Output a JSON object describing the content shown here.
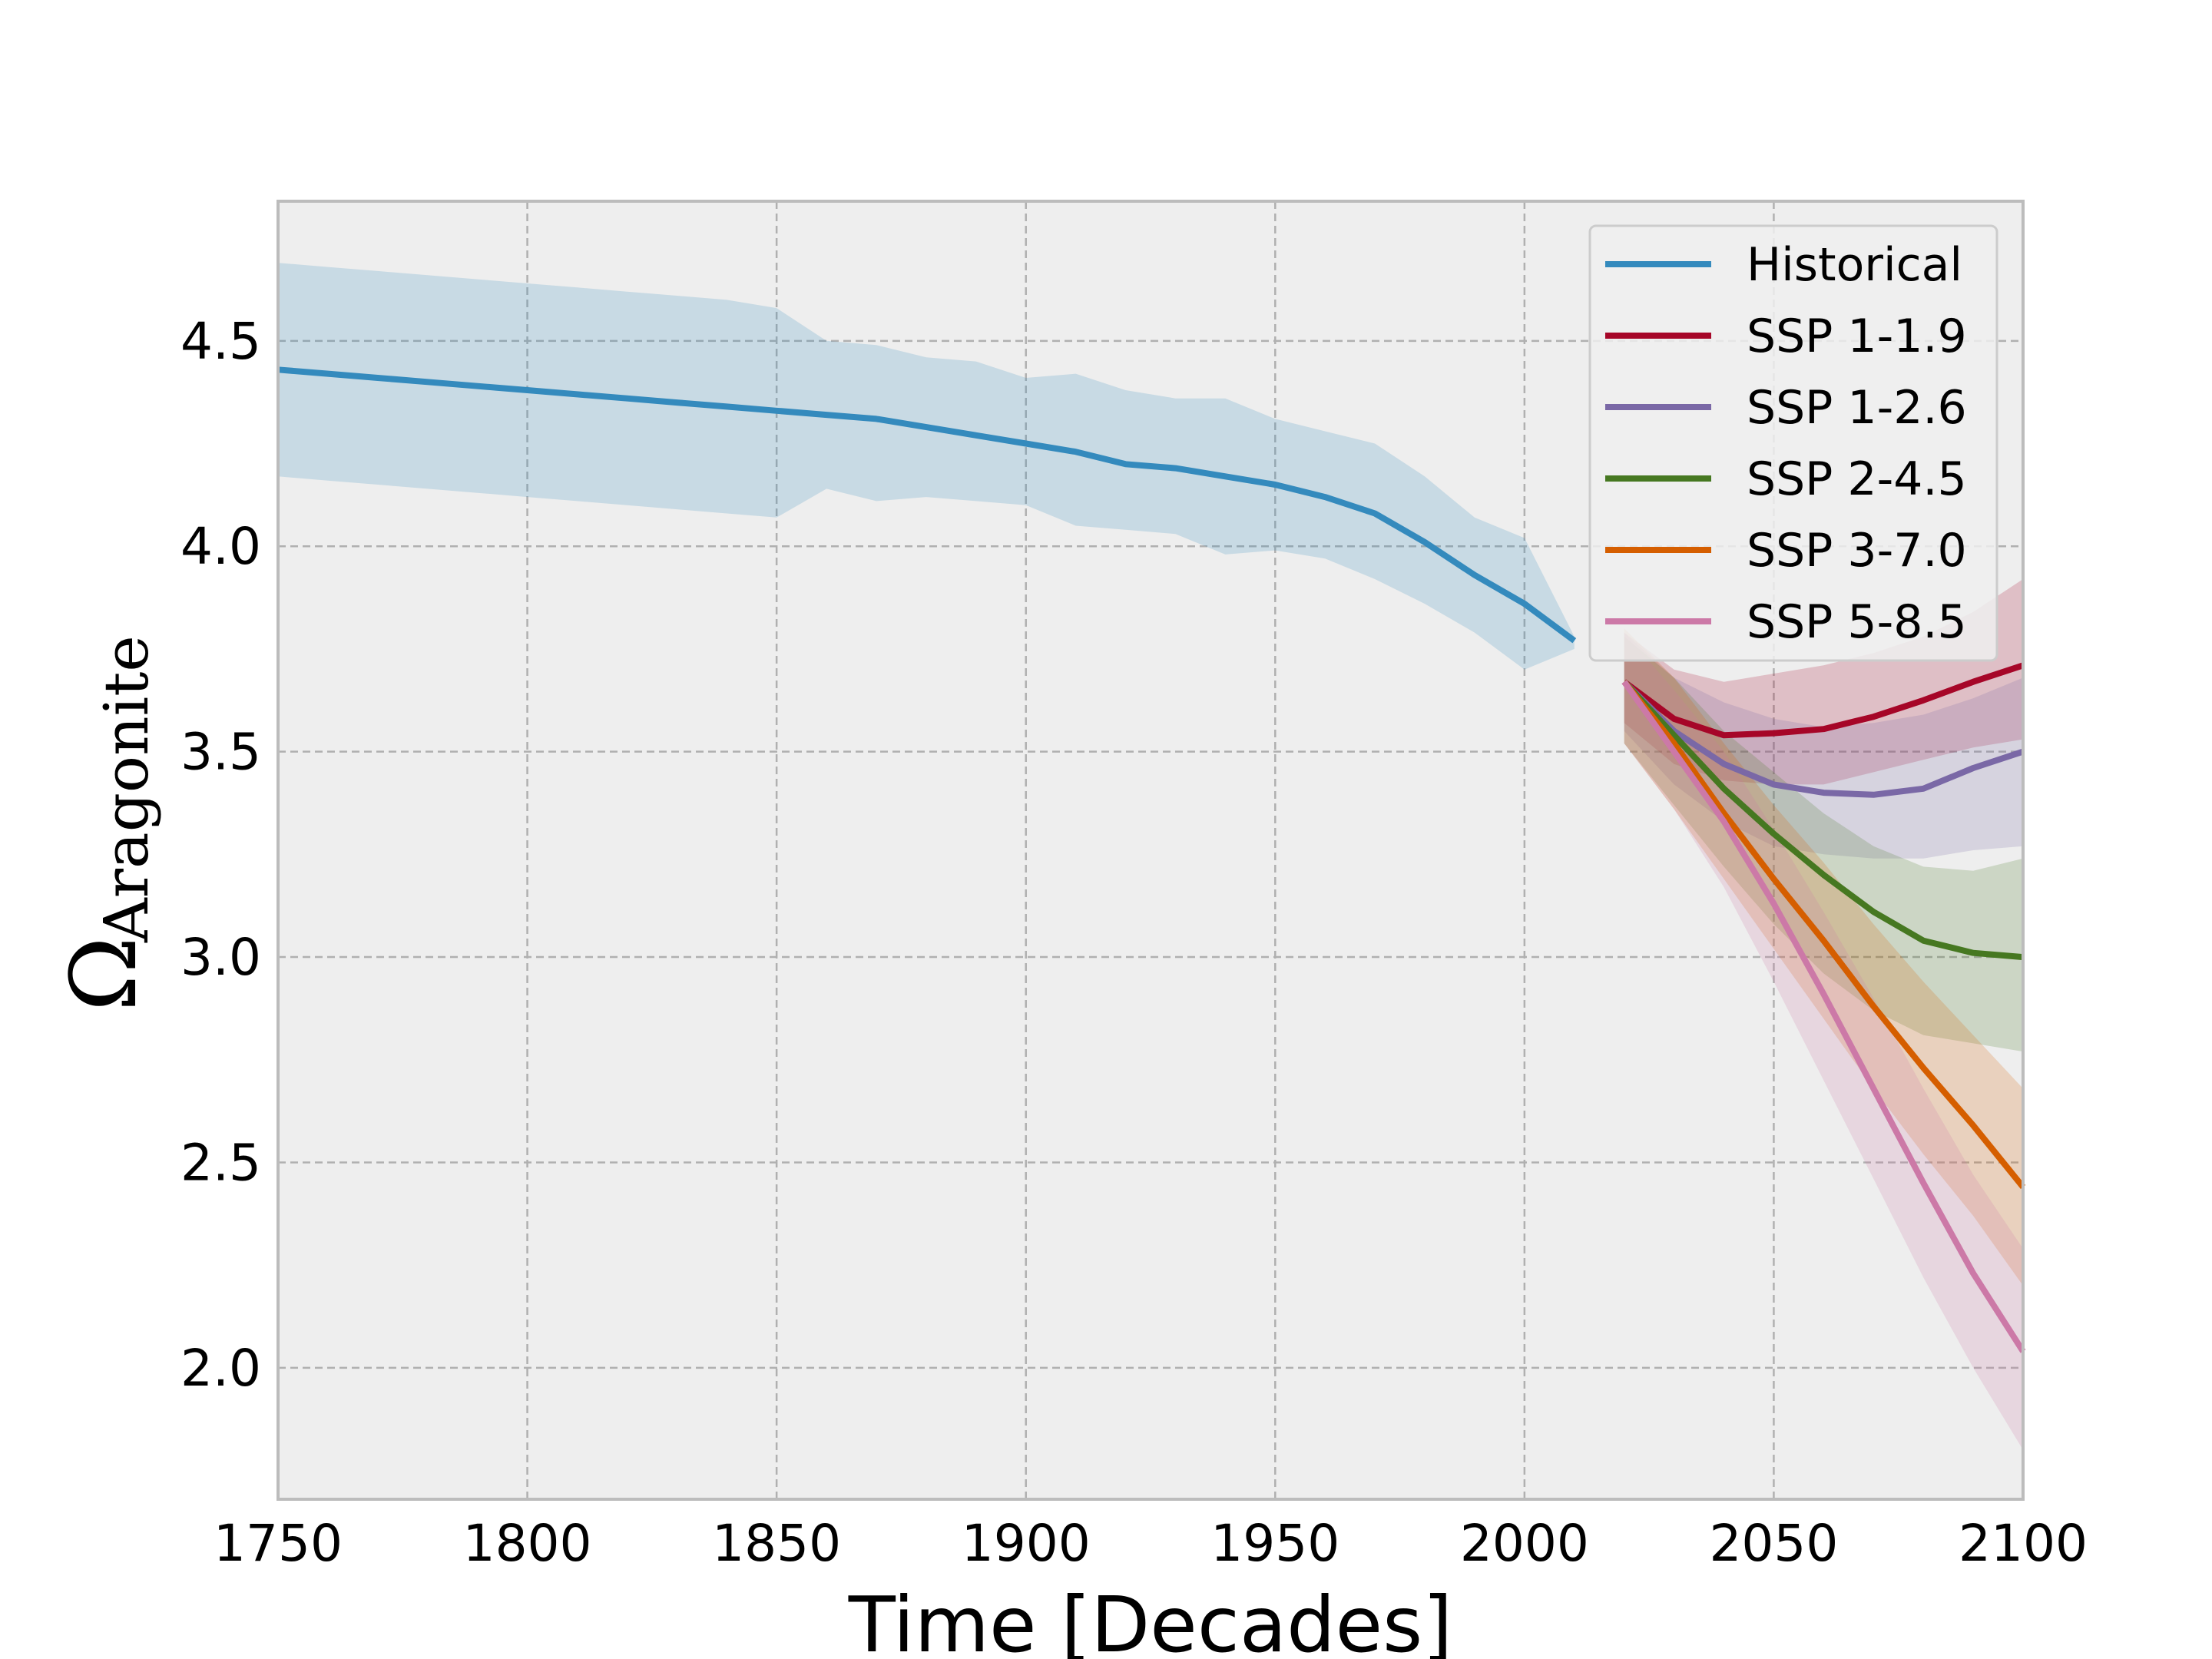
{
  "chart_data": {
    "type": "line",
    "xlabel": "Time [Decades]",
    "ylabel": "Ω",
    "ylabel_subscript": "Aragonite",
    "xlim": [
      1750,
      2100
    ],
    "ylim": [
      1.68,
      4.84
    ],
    "xticks": [
      "1750",
      "1800",
      "1850",
      "1900",
      "1950",
      "2000",
      "2050",
      "2100"
    ],
    "yticks": [
      "2.0",
      "2.5",
      "3.0",
      "3.5",
      "4.0",
      "4.5"
    ],
    "grid": true,
    "legend_position": "top-right",
    "series": [
      {
        "name": "Historical",
        "color": "#348abd",
        "x": [
          1750,
          1760,
          1770,
          1780,
          1790,
          1800,
          1810,
          1820,
          1830,
          1840,
          1850,
          1860,
          1870,
          1880,
          1890,
          1900,
          1910,
          1920,
          1930,
          1940,
          1950,
          1960,
          1970,
          1980,
          1990,
          2000,
          2010
        ],
        "y": [
          4.43,
          4.42,
          4.41,
          4.4,
          4.39,
          4.38,
          4.37,
          4.36,
          4.35,
          4.34,
          4.33,
          4.32,
          4.31,
          4.29,
          4.27,
          4.25,
          4.23,
          4.2,
          4.19,
          4.17,
          4.15,
          4.12,
          4.08,
          4.01,
          3.93,
          3.86,
          3.77
        ],
        "lower": [
          4.17,
          4.16,
          4.15,
          4.14,
          4.13,
          4.12,
          4.11,
          4.1,
          4.09,
          4.08,
          4.07,
          4.14,
          4.11,
          4.12,
          4.11,
          4.1,
          4.05,
          4.04,
          4.03,
          3.98,
          3.99,
          3.97,
          3.92,
          3.86,
          3.79,
          3.7,
          3.75
        ],
        "upper": [
          4.69,
          4.68,
          4.67,
          4.66,
          4.65,
          4.64,
          4.63,
          4.62,
          4.61,
          4.6,
          4.58,
          4.5,
          4.49,
          4.46,
          4.45,
          4.41,
          4.42,
          4.38,
          4.36,
          4.36,
          4.31,
          4.28,
          4.25,
          4.17,
          4.07,
          4.02,
          3.78
        ]
      },
      {
        "name": "SSP 1-1.9",
        "color": "#a60628",
        "x": [
          2020,
          2030,
          2040,
          2050,
          2060,
          2070,
          2080,
          2090,
          2100
        ],
        "y": [
          3.67,
          3.58,
          3.54,
          3.545,
          3.555,
          3.585,
          3.625,
          3.67,
          3.71
        ],
        "lower": [
          3.57,
          3.47,
          3.43,
          3.42,
          3.42,
          3.45,
          3.48,
          3.51,
          3.53
        ],
        "upper": [
          3.79,
          3.7,
          3.67,
          3.69,
          3.71,
          3.74,
          3.78,
          3.84,
          3.92
        ]
      },
      {
        "name": "SSP 1-2.6",
        "color": "#7a68a6",
        "x": [
          2020,
          2030,
          2040,
          2050,
          2060,
          2070,
          2080,
          2090,
          2100
        ],
        "y": [
          3.67,
          3.55,
          3.47,
          3.42,
          3.4,
          3.395,
          3.41,
          3.46,
          3.5
        ],
        "lower": [
          3.55,
          3.42,
          3.33,
          3.27,
          3.25,
          3.24,
          3.24,
          3.26,
          3.27
        ],
        "upper": [
          3.79,
          3.68,
          3.62,
          3.58,
          3.56,
          3.57,
          3.59,
          3.63,
          3.68
        ]
      },
      {
        "name": "SSP 2-4.5",
        "color": "#467821",
        "x": [
          2020,
          2030,
          2040,
          2050,
          2060,
          2070,
          2080,
          2090,
          2100
        ],
        "y": [
          3.67,
          3.54,
          3.41,
          3.3,
          3.2,
          3.11,
          3.04,
          3.01,
          3.0
        ],
        "lower": [
          3.52,
          3.37,
          3.22,
          3.08,
          2.96,
          2.87,
          2.81,
          2.79,
          2.77
        ],
        "upper": [
          3.78,
          3.68,
          3.55,
          3.45,
          3.35,
          3.27,
          3.22,
          3.21,
          3.24
        ]
      },
      {
        "name": "SSP 3-7.0",
        "color": "#d55e00",
        "x": [
          2020,
          2030,
          2040,
          2050,
          2060,
          2070,
          2080,
          2090,
          2100
        ],
        "y": [
          3.67,
          3.52,
          3.35,
          3.19,
          3.04,
          2.88,
          2.73,
          2.59,
          2.44
        ],
        "lower": [
          3.52,
          3.36,
          3.19,
          3.02,
          2.85,
          2.68,
          2.52,
          2.37,
          2.2
        ],
        "upper": [
          3.8,
          3.68,
          3.52,
          3.37,
          3.23,
          3.08,
          2.94,
          2.81,
          2.68
        ]
      },
      {
        "name": "SSP 5-8.5",
        "color": "#cc79a7",
        "x": [
          2020,
          2030,
          2040,
          2050,
          2060,
          2070,
          2080,
          2090,
          2100
        ],
        "y": [
          3.67,
          3.5,
          3.33,
          3.13,
          2.91,
          2.68,
          2.45,
          2.23,
          2.04
        ],
        "lower": [
          3.52,
          3.36,
          3.17,
          2.94,
          2.7,
          2.46,
          2.22,
          2.0,
          1.8
        ],
        "upper": [
          3.79,
          3.65,
          3.5,
          3.31,
          3.11,
          2.9,
          2.68,
          2.47,
          2.29
        ]
      }
    ]
  }
}
